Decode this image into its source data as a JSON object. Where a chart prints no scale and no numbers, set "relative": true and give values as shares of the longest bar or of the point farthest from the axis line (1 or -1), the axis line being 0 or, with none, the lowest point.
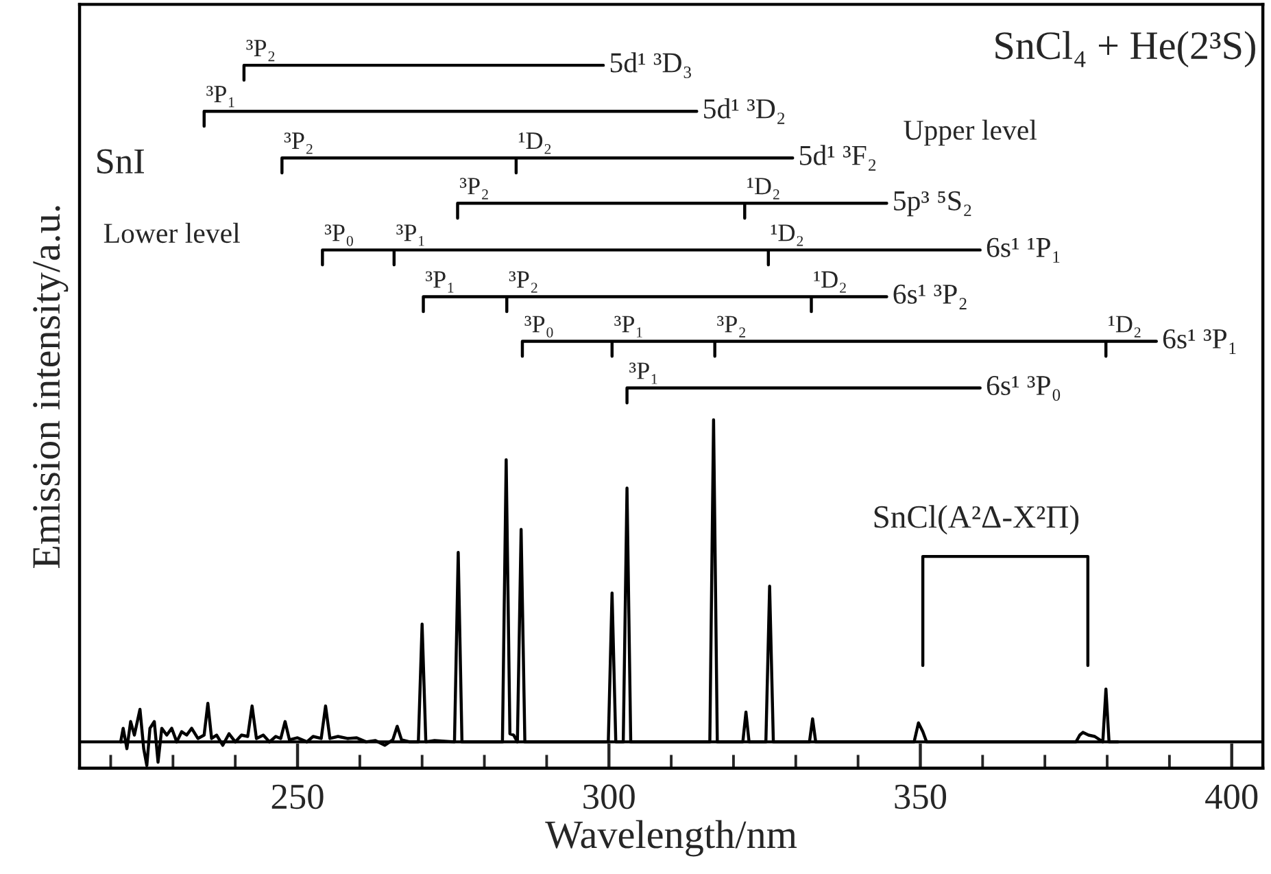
{
  "chart_data": {
    "type": "line",
    "title": "SnCl₄ + He(2³S)",
    "xlabel": "Wavelength/nm",
    "ylabel": "Emission intensity/a.u.",
    "relative": true,
    "xlim": [
      215,
      405
    ],
    "xticks": [
      {
        "value": 220,
        "label": null
      },
      {
        "value": 230,
        "label": null
      },
      {
        "value": 240,
        "label": null
      },
      250,
      {
        "value": 260,
        "label": null
      },
      {
        "value": 270,
        "label": null
      },
      {
        "value": 280,
        "label": null
      },
      {
        "value": 290,
        "label": null
      },
      300,
      {
        "value": 310,
        "label": null
      },
      {
        "value": 320,
        "label": null
      },
      {
        "value": 330,
        "label": null
      },
      {
        "value": 340,
        "label": null
      },
      350,
      {
        "value": 360,
        "label": null
      },
      {
        "value": 370,
        "label": null
      },
      {
        "value": 380,
        "label": null
      },
      {
        "value": 390,
        "label": null
      },
      400
    ],
    "tick_labels": "x",
    "grid": false,
    "legend": false,
    "marker": "none",
    "line_style": "solid",
    "ref_lines": [
      {
        "axis": "y",
        "value": 0,
        "color": "#000000"
      }
    ],
    "series": [
      {
        "color": "#000000",
        "x": [
          221.6,
          222,
          222.6,
          223.2,
          223.8,
          224.7,
          225.3,
          225.8,
          226.3,
          227,
          227.6,
          228.2,
          229,
          229.8,
          230.6,
          231.4,
          232.2,
          233,
          234,
          235,
          235.6,
          236.2,
          237,
          238,
          239,
          240,
          241,
          242,
          242.7,
          243.4,
          244.5,
          245.5,
          246.5,
          247.3,
          248.0,
          248.7,
          250,
          251.5,
          252.5,
          253.8,
          254.5,
          255.2,
          256.5,
          258,
          259.5,
          261,
          262.5,
          264,
          265.3,
          266,
          266.7,
          268,
          269.4,
          270.0,
          270.6,
          272,
          275.2,
          275.8,
          276.4,
          282.9,
          283.5,
          284.1,
          284.7,
          285.3,
          285.9,
          286.5,
          299.9,
          300.5,
          301.1,
          302.3,
          302.9,
          303.5,
          316.2,
          316.8,
          317.4,
          321.5,
          322.0,
          322.5,
          325.2,
          325.8,
          326.4,
          332.2,
          332.7,
          333.2,
          349.0,
          349.7,
          350.4,
          351,
          375,
          375.6,
          376.1,
          377,
          378,
          379.3,
          379.8,
          380.3,
          381.7
        ],
        "values": [
          0,
          0.02,
          -0.01,
          0.03,
          0.01,
          0.048,
          -0.01,
          -0.035,
          0.02,
          0.03,
          -0.03,
          0.02,
          0.01,
          0.02,
          0.0,
          0.015,
          0.01,
          0.02,
          0.005,
          0.01,
          0.057,
          0.005,
          0.01,
          -0.005,
          0.012,
          0.0,
          0.01,
          0.008,
          0.053,
          0.005,
          0.01,
          0.0,
          0.008,
          0.005,
          0.03,
          0.003,
          0.006,
          0.0,
          0.008,
          0.005,
          0.053,
          0.005,
          0.008,
          0.005,
          0.006,
          0.0,
          0.002,
          -0.005,
          0.003,
          0.023,
          0.003,
          0.0,
          0,
          0.174,
          0,
          0.002,
          0,
          0.28,
          0,
          0,
          0.417,
          0.012,
          0.01,
          0,
          0.314,
          0,
          0,
          0.22,
          0,
          0,
          0.375,
          0,
          0,
          0.476,
          0,
          0,
          0.044,
          0,
          0,
          0.23,
          0,
          0,
          0.034,
          0,
          0,
          0.028,
          0.015,
          0,
          0,
          0.01,
          0.014,
          0.01,
          0.008,
          0,
          0.078,
          0,
          0
        ]
      },
      {
        "color": "#000000",
        "x": [
          241.4,
          241.4,
          299.1
        ],
        "values": [
          0.978,
          1.0,
          1.0
        ]
      },
      {
        "color": "#000000",
        "x": [
          235.0,
          235.0,
          314.1
        ],
        "values": [
          0.91,
          0.932,
          0.932
        ]
      },
      {
        "color": "#000000",
        "x": [
          247.5,
          247.5,
          285.1,
          285.1,
          285.1,
          329.5
        ],
        "values": [
          0.841,
          0.863,
          0.863,
          0.841,
          0.863,
          0.863
        ]
      },
      {
        "color": "#000000",
        "x": [
          275.7,
          275.7,
          321.8,
          321.8,
          321.8,
          344.6
        ],
        "values": [
          0.774,
          0.796,
          0.796,
          0.774,
          0.796,
          0.796
        ]
      },
      {
        "color": "#000000",
        "x": [
          254.0,
          254.0,
          265.5,
          265.5,
          265.5,
          325.6,
          325.6,
          325.6,
          359.6
        ],
        "values": [
          0.705,
          0.727,
          0.727,
          0.705,
          0.727,
          0.727,
          0.705,
          0.727,
          0.727
        ]
      },
      {
        "color": "#000000",
        "x": [
          270.2,
          270.2,
          283.6,
          283.6,
          283.6,
          332.5,
          332.5,
          332.5,
          344.6
        ],
        "values": [
          0.636,
          0.658,
          0.658,
          0.636,
          0.658,
          0.658,
          0.636,
          0.658,
          0.658
        ]
      },
      {
        "color": "#000000",
        "x": [
          286.1,
          286.1,
          300.5,
          300.5,
          300.5,
          317.0,
          317.0,
          317.0,
          379.8,
          379.8,
          379.8,
          387.9
        ],
        "values": [
          0.57,
          0.592,
          0.592,
          0.57,
          0.592,
          0.592,
          0.57,
          0.592,
          0.592,
          0.57,
          0.592,
          0.592
        ]
      },
      {
        "color": "#000000",
        "x": [
          302.9,
          302.9,
          359.6
        ],
        "values": [
          0.501,
          0.523,
          0.523
        ]
      },
      {
        "color": "#000000",
        "x": [
          350.4,
          350.4,
          376.9,
          376.9
        ],
        "values": [
          0.113,
          0.274,
          0.274,
          0.113
        ]
      }
    ],
    "annotations": [
      {
        "text": "³P₂",
        "x": 241.4,
        "y": 1.0
      },
      {
        "text": "5d¹ ³D₃",
        "x": 299.1,
        "y": 1.0
      },
      {
        "text": "³P₁",
        "x": 235.0,
        "y": 0.932
      },
      {
        "text": "5d¹ ³D₂",
        "x": 314.1,
        "y": 0.932
      },
      {
        "text": "³P₂",
        "x": 247.5,
        "y": 0.863
      },
      {
        "text": "¹D₂",
        "x": 285.1,
        "y": 0.863
      },
      {
        "text": "5d¹ ³F₂",
        "x": 329.5,
        "y": 0.863
      },
      {
        "text": "³P₂",
        "x": 275.7,
        "y": 0.796
      },
      {
        "text": "¹D₂",
        "x": 321.8,
        "y": 0.796
      },
      {
        "text": "5p³ ⁵S₂",
        "x": 344.6,
        "y": 0.796
      },
      {
        "text": "³P₀",
        "x": 254.0,
        "y": 0.727
      },
      {
        "text": "³P₁",
        "x": 265.5,
        "y": 0.727
      },
      {
        "text": "¹D₂",
        "x": 325.6,
        "y": 0.727
      },
      {
        "text": "6s¹ ¹P₁",
        "x": 359.6,
        "y": 0.727
      },
      {
        "text": "³P₁",
        "x": 270.2,
        "y": 0.658
      },
      {
        "text": "³P₂",
        "x": 283.6,
        "y": 0.658
      },
      {
        "text": "¹D₂",
        "x": 332.5,
        "y": 0.658
      },
      {
        "text": "6s¹ ³P₂",
        "x": 344.6,
        "y": 0.658
      },
      {
        "text": "³P₀",
        "x": 286.1,
        "y": 0.592
      },
      {
        "text": "³P₁",
        "x": 300.5,
        "y": 0.592
      },
      {
        "text": "³P₂",
        "x": 317.0,
        "y": 0.592
      },
      {
        "text": "¹D₂",
        "x": 379.8,
        "y": 0.592
      },
      {
        "text": "6s¹ ³P₁",
        "x": 387.9,
        "y": 0.592
      },
      {
        "text": "³P₁",
        "x": 302.9,
        "y": 0.523
      },
      {
        "text": "6s¹ ³P₀",
        "x": 359.6,
        "y": 0.523
      },
      "Upper level",
      "SnI",
      "Lower level",
      "SnCl(A²Δ-X²Π)"
    ]
  }
}
